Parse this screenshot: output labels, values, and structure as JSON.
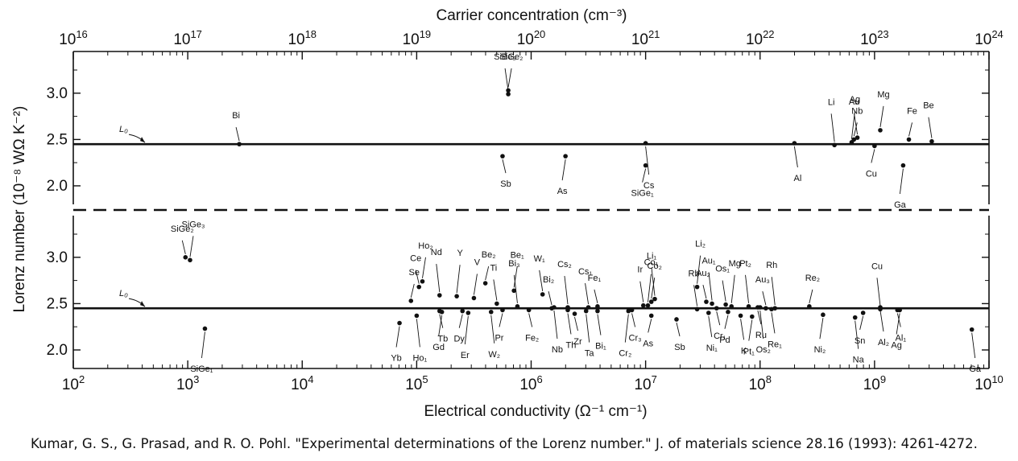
{
  "citation": "Kumar, G. S., G. Prasad, and R. O. Pohl. \"Experimental determinations of the Lorenz number.\" J. of materials science 28.16 (1993): 4261-4272.",
  "chart_data": {
    "type": "scatter",
    "top_axis": {
      "label": "Carrier concentration (cm⁻³)",
      "scale": "log",
      "range": [
        16,
        24
      ],
      "tick_exponents": [
        16,
        17,
        18,
        19,
        20,
        21,
        22,
        23,
        24
      ]
    },
    "bottom_axis": {
      "label": "Electrical conductivity (Ω⁻¹ cm⁻¹)",
      "scale": "log",
      "range": [
        2,
        10
      ],
      "tick_exponents": [
        2,
        3,
        4,
        5,
        6,
        7,
        8,
        9,
        10
      ]
    },
    "ylabel": "Lorenz number (10⁻⁸ WΩ K⁻²)",
    "y_ticks": [
      "3.0",
      "2.5",
      "2.0"
    ],
    "ylim": [
      1.8,
      3.45
    ],
    "reference_label": "L₀",
    "reference_value": 2.45,
    "panels": [
      {
        "panel": "top",
        "x_axis": "carrier_concentration_log10",
        "points": [
          {
            "label": "Bi",
            "x": 17.45,
            "y": 2.45
          },
          {
            "label": "SiGe₂",
            "x": 19.8,
            "y": 3.03
          },
          {
            "label": "SiBe₃",
            "x": 19.8,
            "y": 2.99
          },
          {
            "label": "Sb",
            "x": 19.75,
            "y": 2.32
          },
          {
            "label": "As",
            "x": 20.3,
            "y": 2.32
          },
          {
            "label": "Cs",
            "x": 21.0,
            "y": 2.46
          },
          {
            "label": "SiGe₁",
            "x": 21.0,
            "y": 2.22
          },
          {
            "label": "Al",
            "x": 22.3,
            "y": 2.46
          },
          {
            "label": "Li",
            "x": 22.65,
            "y": 2.44
          },
          {
            "label": "Nb",
            "x": 22.82,
            "y": 2.5
          },
          {
            "label": "Au",
            "x": 22.85,
            "y": 2.52
          },
          {
            "label": "Ag",
            "x": 22.8,
            "y": 2.47
          },
          {
            "label": "Cu",
            "x": 23.0,
            "y": 2.43
          },
          {
            "label": "Mg",
            "x": 23.05,
            "y": 2.6
          },
          {
            "label": "Ga",
            "x": 23.25,
            "y": 2.22
          },
          {
            "label": "Fe",
            "x": 23.3,
            "y": 2.5
          },
          {
            "label": "Be",
            "x": 23.5,
            "y": 2.48
          }
        ]
      },
      {
        "panel": "bottom",
        "x_axis": "electrical_conductivity_log10",
        "points": [
          {
            "label": "SiGe₂",
            "x": 2.98,
            "y": 3.0
          },
          {
            "label": "SiGe₃",
            "x": 3.02,
            "y": 2.97
          },
          {
            "label": "SiGe₁",
            "x": 3.15,
            "y": 2.23
          },
          {
            "label": "Se",
            "x": 4.95,
            "y": 2.53
          },
          {
            "label": "Yb",
            "x": 4.85,
            "y": 2.29
          },
          {
            "label": "Ho₁",
            "x": 5.0,
            "y": 2.37
          },
          {
            "label": "Ce",
            "x": 5.02,
            "y": 2.68
          },
          {
            "label": "Ho₂",
            "x": 5.05,
            "y": 2.74
          },
          {
            "label": "Nd",
            "x": 5.2,
            "y": 2.59
          },
          {
            "label": "Tb",
            "x": 5.2,
            "y": 2.42
          },
          {
            "label": "Gd",
            "x": 5.22,
            "y": 2.41
          },
          {
            "label": "Y",
            "x": 5.35,
            "y": 2.58
          },
          {
            "label": "Dy",
            "x": 5.4,
            "y": 2.42
          },
          {
            "label": "V",
            "x": 5.5,
            "y": 2.56
          },
          {
            "label": "Er",
            "x": 5.45,
            "y": 2.4
          },
          {
            "label": "Be₂",
            "x": 5.6,
            "y": 2.72
          },
          {
            "label": "Ti",
            "x": 5.7,
            "y": 2.5
          },
          {
            "label": "W₂",
            "x": 5.65,
            "y": 2.41
          },
          {
            "label": "Pr",
            "x": 5.75,
            "y": 2.43
          },
          {
            "label": "Be₁",
            "x": 5.85,
            "y": 2.64
          },
          {
            "label": "Bi₃",
            "x": 5.88,
            "y": 2.47
          },
          {
            "label": "Fe₂",
            "x": 5.98,
            "y": 2.43
          },
          {
            "label": "W₁",
            "x": 6.1,
            "y": 2.6
          },
          {
            "label": "Nb",
            "x": 6.2,
            "y": 2.46
          },
          {
            "label": "Bi₂",
            "x": 6.18,
            "y": 2.45
          },
          {
            "label": "Th",
            "x": 6.32,
            "y": 2.43
          },
          {
            "label": "Cs₂",
            "x": 6.32,
            "y": 2.46
          },
          {
            "label": "Zr",
            "x": 6.38,
            "y": 2.39
          },
          {
            "label": "Cs₁",
            "x": 6.5,
            "y": 2.46
          },
          {
            "label": "Ta",
            "x": 6.48,
            "y": 2.42
          },
          {
            "label": "Fe₁",
            "x": 6.58,
            "y": 2.47
          },
          {
            "label": "Bi₁",
            "x": 6.58,
            "y": 2.42
          },
          {
            "label": "Cr₂",
            "x": 6.85,
            "y": 2.42
          },
          {
            "label": "Cr₃",
            "x": 6.88,
            "y": 2.43
          },
          {
            "label": "Ir",
            "x": 6.98,
            "y": 2.48
          },
          {
            "label": "Co₁",
            "x": 7.02,
            "y": 2.48
          },
          {
            "label": "As",
            "x": 7.05,
            "y": 2.37
          },
          {
            "label": "Co₂",
            "x": 7.05,
            "y": 2.52
          },
          {
            "label": "Li₁",
            "x": 7.08,
            "y": 2.55
          },
          {
            "label": "Sb",
            "x": 7.27,
            "y": 2.33
          },
          {
            "label": "Rb",
            "x": 7.45,
            "y": 2.44
          },
          {
            "label": "Li₂",
            "x": 7.45,
            "y": 2.68
          },
          {
            "label": "Au₂",
            "x": 7.53,
            "y": 2.52
          },
          {
            "label": "Ni₁",
            "x": 7.55,
            "y": 2.4
          },
          {
            "label": "Au₁",
            "x": 7.58,
            "y": 2.5
          },
          {
            "label": "Cr₁",
            "x": 7.62,
            "y": 2.45
          },
          {
            "label": "Os₁",
            "x": 7.7,
            "y": 2.49
          },
          {
            "label": "Mg",
            "x": 7.75,
            "y": 2.47
          },
          {
            "label": "Pd",
            "x": 7.72,
            "y": 2.41
          },
          {
            "label": "K",
            "x": 7.83,
            "y": 2.37
          },
          {
            "label": "Pt₂",
            "x": 7.9,
            "y": 2.47
          },
          {
            "label": "Ru",
            "x": 7.98,
            "y": 2.46
          },
          {
            "label": "Pt₁",
            "x": 7.93,
            "y": 2.36
          },
          {
            "label": "Os₂",
            "x": 8.0,
            "y": 2.46
          },
          {
            "label": "Au₃",
            "x": 8.05,
            "y": 2.45
          },
          {
            "label": "Re₁",
            "x": 8.1,
            "y": 2.44
          },
          {
            "label": "Rh",
            "x": 8.13,
            "y": 2.45
          },
          {
            "label": "Re₂",
            "x": 8.43,
            "y": 2.47
          },
          {
            "label": "Ni₂",
            "x": 8.55,
            "y": 2.38
          },
          {
            "label": "Na",
            "x": 8.83,
            "y": 2.35
          },
          {
            "label": "Sn",
            "x": 8.9,
            "y": 2.4
          },
          {
            "label": "Al₂",
            "x": 9.05,
            "y": 2.46
          },
          {
            "label": "Cu",
            "x": 9.05,
            "y": 2.44
          },
          {
            "label": "Al₁",
            "x": 9.2,
            "y": 2.43
          },
          {
            "label": "Ag",
            "x": 9.22,
            "y": 2.43
          },
          {
            "label": "Ga",
            "x": 9.85,
            "y": 2.22
          }
        ]
      }
    ]
  }
}
